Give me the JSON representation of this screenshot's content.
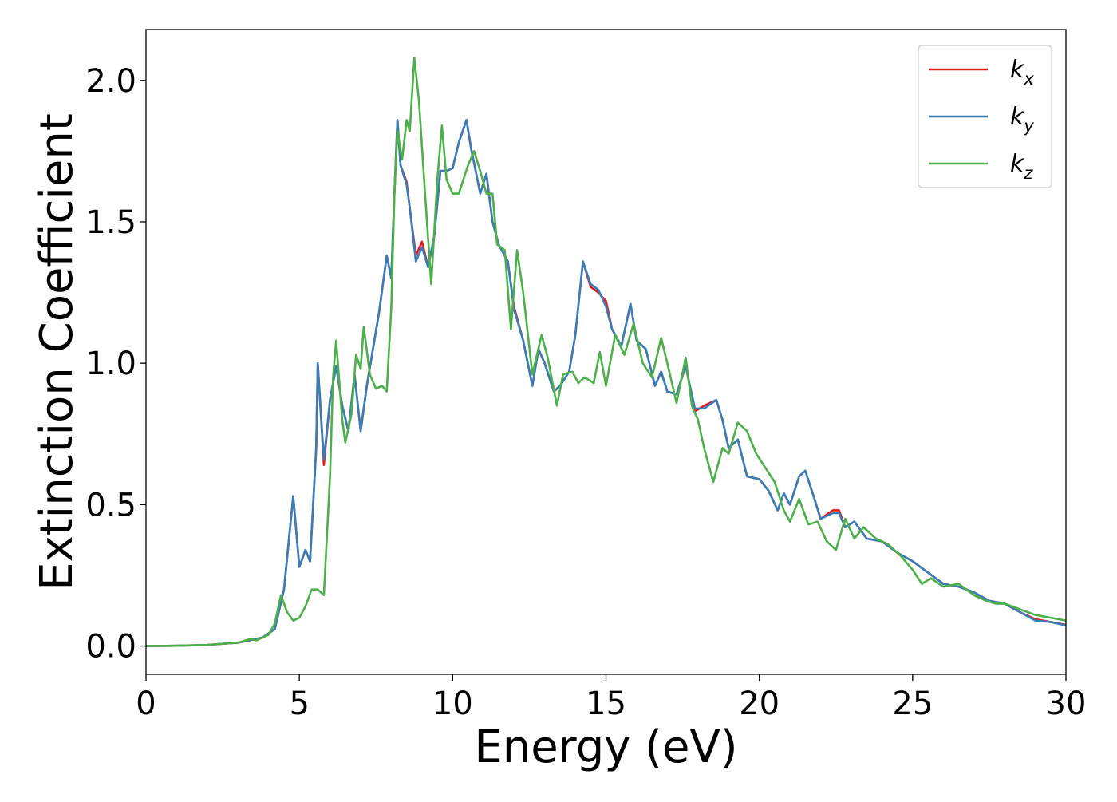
{
  "chart_data": {
    "type": "line",
    "xlabel": "Energy (eV)",
    "ylabel": "Extinction Coefficient",
    "xlim": [
      0,
      30
    ],
    "ylim": [
      -0.1,
      2.18
    ],
    "x_ticks": [
      "0",
      "5",
      "10",
      "15",
      "20",
      "25",
      "30"
    ],
    "y_ticks": [
      "0.0",
      "0.5",
      "1.0",
      "1.5",
      "2.0"
    ],
    "grid": false,
    "legend_position": "top-right",
    "series": [
      {
        "name": "k",
        "subscript": "x",
        "color": "#e41a1c",
        "points": [
          [
            0,
            0.0
          ],
          [
            1,
            0.001
          ],
          [
            2,
            0.004
          ],
          [
            3,
            0.012
          ],
          [
            3.8,
            0.03
          ],
          [
            4.2,
            0.06
          ],
          [
            4.5,
            0.2
          ],
          [
            4.8,
            0.53
          ],
          [
            5.0,
            0.28
          ],
          [
            5.2,
            0.34
          ],
          [
            5.35,
            0.3
          ],
          [
            5.55,
            0.7
          ],
          [
            5.6,
            1.0
          ],
          [
            5.8,
            0.64
          ],
          [
            6.0,
            0.87
          ],
          [
            6.2,
            0.99
          ],
          [
            6.4,
            0.85
          ],
          [
            6.6,
            0.76
          ],
          [
            6.8,
            0.96
          ],
          [
            7.0,
            0.76
          ],
          [
            7.2,
            0.92
          ],
          [
            7.4,
            1.05
          ],
          [
            7.6,
            1.18
          ],
          [
            7.85,
            1.38
          ],
          [
            8.0,
            1.3
          ],
          [
            8.1,
            1.6
          ],
          [
            8.2,
            1.86
          ],
          [
            8.3,
            1.7
          ],
          [
            8.5,
            1.64
          ],
          [
            8.6,
            1.55
          ],
          [
            8.8,
            1.38
          ],
          [
            9.0,
            1.43
          ],
          [
            9.2,
            1.34
          ],
          [
            9.4,
            1.45
          ],
          [
            9.6,
            1.68
          ],
          [
            9.8,
            1.68
          ],
          [
            10.0,
            1.69
          ],
          [
            10.2,
            1.78
          ],
          [
            10.45,
            1.86
          ],
          [
            10.6,
            1.76
          ],
          [
            10.9,
            1.6
          ],
          [
            11.1,
            1.67
          ],
          [
            11.3,
            1.5
          ],
          [
            11.5,
            1.42
          ],
          [
            11.8,
            1.36
          ],
          [
            12.0,
            1.2
          ],
          [
            12.3,
            1.08
          ],
          [
            12.6,
            0.92
          ],
          [
            12.8,
            1.05
          ],
          [
            13.0,
            1.0
          ],
          [
            13.3,
            0.9
          ],
          [
            13.5,
            0.92
          ],
          [
            13.8,
            0.97
          ],
          [
            14.0,
            1.1
          ],
          [
            14.25,
            1.36
          ],
          [
            14.5,
            1.27
          ],
          [
            14.75,
            1.25
          ],
          [
            15.0,
            1.22
          ],
          [
            15.2,
            1.12
          ],
          [
            15.5,
            1.06
          ],
          [
            15.8,
            1.21
          ],
          [
            16.0,
            1.08
          ],
          [
            16.3,
            1.05
          ],
          [
            16.6,
            0.92
          ],
          [
            16.8,
            0.97
          ],
          [
            17.0,
            0.9
          ],
          [
            17.3,
            0.89
          ],
          [
            17.6,
            0.99
          ],
          [
            17.9,
            0.83
          ],
          [
            18.2,
            0.85
          ],
          [
            18.6,
            0.87
          ],
          [
            18.8,
            0.8
          ],
          [
            19.0,
            0.7
          ],
          [
            19.3,
            0.73
          ],
          [
            19.6,
            0.6
          ],
          [
            20.0,
            0.59
          ],
          [
            20.3,
            0.55
          ],
          [
            20.6,
            0.48
          ],
          [
            20.8,
            0.54
          ],
          [
            21.0,
            0.5
          ],
          [
            21.3,
            0.6
          ],
          [
            21.5,
            0.62
          ],
          [
            21.8,
            0.52
          ],
          [
            22.0,
            0.45
          ],
          [
            22.4,
            0.48
          ],
          [
            22.6,
            0.48
          ],
          [
            22.8,
            0.42
          ],
          [
            23.1,
            0.44
          ],
          [
            23.5,
            0.38
          ],
          [
            24.0,
            0.37
          ],
          [
            24.5,
            0.33
          ],
          [
            25.0,
            0.3
          ],
          [
            25.5,
            0.26
          ],
          [
            26.0,
            0.22
          ],
          [
            26.5,
            0.21
          ],
          [
            27.0,
            0.19
          ],
          [
            27.5,
            0.16
          ],
          [
            28.0,
            0.15
          ],
          [
            28.5,
            0.12
          ],
          [
            29.0,
            0.095
          ],
          [
            29.5,
            0.085
          ],
          [
            30.0,
            0.075
          ]
        ]
      },
      {
        "name": "k",
        "subscript": "y",
        "color": "#377eb8",
        "points": [
          [
            0,
            0.0
          ],
          [
            1,
            0.001
          ],
          [
            2,
            0.004
          ],
          [
            3,
            0.012
          ],
          [
            3.8,
            0.03
          ],
          [
            4.2,
            0.06
          ],
          [
            4.5,
            0.2
          ],
          [
            4.8,
            0.53
          ],
          [
            5.0,
            0.28
          ],
          [
            5.2,
            0.34
          ],
          [
            5.35,
            0.3
          ],
          [
            5.55,
            0.7
          ],
          [
            5.6,
            1.0
          ],
          [
            5.8,
            0.66
          ],
          [
            6.0,
            0.87
          ],
          [
            6.2,
            0.99
          ],
          [
            6.4,
            0.85
          ],
          [
            6.6,
            0.76
          ],
          [
            6.8,
            0.96
          ],
          [
            7.0,
            0.76
          ],
          [
            7.2,
            0.92
          ],
          [
            7.4,
            1.05
          ],
          [
            7.6,
            1.18
          ],
          [
            7.85,
            1.38
          ],
          [
            8.0,
            1.3
          ],
          [
            8.1,
            1.6
          ],
          [
            8.2,
            1.86
          ],
          [
            8.3,
            1.7
          ],
          [
            8.5,
            1.63
          ],
          [
            8.6,
            1.55
          ],
          [
            8.8,
            1.36
          ],
          [
            9.0,
            1.41
          ],
          [
            9.2,
            1.34
          ],
          [
            9.4,
            1.45
          ],
          [
            9.6,
            1.68
          ],
          [
            9.8,
            1.68
          ],
          [
            10.0,
            1.69
          ],
          [
            10.2,
            1.78
          ],
          [
            10.45,
            1.86
          ],
          [
            10.6,
            1.76
          ],
          [
            10.9,
            1.6
          ],
          [
            11.1,
            1.67
          ],
          [
            11.3,
            1.5
          ],
          [
            11.5,
            1.42
          ],
          [
            11.8,
            1.36
          ],
          [
            12.0,
            1.19
          ],
          [
            12.3,
            1.08
          ],
          [
            12.6,
            0.92
          ],
          [
            12.8,
            1.05
          ],
          [
            13.0,
            1.0
          ],
          [
            13.3,
            0.9
          ],
          [
            13.5,
            0.92
          ],
          [
            13.8,
            0.97
          ],
          [
            14.0,
            1.1
          ],
          [
            14.25,
            1.36
          ],
          [
            14.5,
            1.28
          ],
          [
            14.75,
            1.26
          ],
          [
            15.0,
            1.2
          ],
          [
            15.2,
            1.12
          ],
          [
            15.5,
            1.06
          ],
          [
            15.8,
            1.21
          ],
          [
            16.0,
            1.08
          ],
          [
            16.3,
            1.05
          ],
          [
            16.6,
            0.92
          ],
          [
            16.8,
            0.97
          ],
          [
            17.0,
            0.9
          ],
          [
            17.3,
            0.89
          ],
          [
            17.6,
            0.99
          ],
          [
            17.9,
            0.84
          ],
          [
            18.2,
            0.84
          ],
          [
            18.6,
            0.87
          ],
          [
            18.8,
            0.8
          ],
          [
            19.0,
            0.7
          ],
          [
            19.3,
            0.73
          ],
          [
            19.6,
            0.6
          ],
          [
            20.0,
            0.59
          ],
          [
            20.3,
            0.55
          ],
          [
            20.6,
            0.48
          ],
          [
            20.8,
            0.54
          ],
          [
            21.0,
            0.5
          ],
          [
            21.3,
            0.6
          ],
          [
            21.5,
            0.62
          ],
          [
            21.8,
            0.52
          ],
          [
            22.0,
            0.45
          ],
          [
            22.4,
            0.47
          ],
          [
            22.6,
            0.47
          ],
          [
            22.8,
            0.42
          ],
          [
            23.1,
            0.44
          ],
          [
            23.5,
            0.38
          ],
          [
            24.0,
            0.37
          ],
          [
            24.5,
            0.33
          ],
          [
            25.0,
            0.3
          ],
          [
            25.5,
            0.26
          ],
          [
            26.0,
            0.22
          ],
          [
            26.5,
            0.21
          ],
          [
            27.0,
            0.19
          ],
          [
            27.5,
            0.16
          ],
          [
            28.0,
            0.15
          ],
          [
            28.5,
            0.12
          ],
          [
            29.0,
            0.09
          ],
          [
            29.5,
            0.085
          ],
          [
            30.0,
            0.073
          ]
        ]
      },
      {
        "name": "k",
        "subscript": "z",
        "color": "#4daf4a",
        "points": [
          [
            0,
            0.0
          ],
          [
            1,
            0.001
          ],
          [
            2,
            0.004
          ],
          [
            3,
            0.012
          ],
          [
            3.4,
            0.025
          ],
          [
            3.6,
            0.02
          ],
          [
            4.0,
            0.04
          ],
          [
            4.2,
            0.08
          ],
          [
            4.4,
            0.18
          ],
          [
            4.6,
            0.12
          ],
          [
            4.8,
            0.09
          ],
          [
            5.0,
            0.1
          ],
          [
            5.2,
            0.14
          ],
          [
            5.4,
            0.2
          ],
          [
            5.6,
            0.2
          ],
          [
            5.8,
            0.18
          ],
          [
            6.0,
            0.6
          ],
          [
            6.1,
            0.95
          ],
          [
            6.2,
            1.08
          ],
          [
            6.4,
            0.8
          ],
          [
            6.5,
            0.72
          ],
          [
            6.7,
            0.82
          ],
          [
            6.85,
            1.03
          ],
          [
            7.0,
            0.98
          ],
          [
            7.1,
            1.13
          ],
          [
            7.3,
            0.96
          ],
          [
            7.5,
            0.91
          ],
          [
            7.7,
            0.92
          ],
          [
            7.85,
            0.9
          ],
          [
            8.0,
            1.2
          ],
          [
            8.1,
            1.6
          ],
          [
            8.2,
            1.82
          ],
          [
            8.35,
            1.72
          ],
          [
            8.5,
            1.86
          ],
          [
            8.6,
            1.82
          ],
          [
            8.75,
            2.08
          ],
          [
            8.9,
            1.93
          ],
          [
            9.1,
            1.6
          ],
          [
            9.3,
            1.28
          ],
          [
            9.5,
            1.65
          ],
          [
            9.65,
            1.84
          ],
          [
            9.8,
            1.65
          ],
          [
            10.0,
            1.6
          ],
          [
            10.2,
            1.6
          ],
          [
            10.5,
            1.7
          ],
          [
            10.7,
            1.75
          ],
          [
            10.9,
            1.68
          ],
          [
            11.1,
            1.6
          ],
          [
            11.3,
            1.6
          ],
          [
            11.45,
            1.42
          ],
          [
            11.7,
            1.4
          ],
          [
            11.9,
            1.12
          ],
          [
            12.1,
            1.4
          ],
          [
            12.3,
            1.25
          ],
          [
            12.6,
            0.96
          ],
          [
            12.9,
            1.1
          ],
          [
            13.1,
            1.02
          ],
          [
            13.4,
            0.85
          ],
          [
            13.6,
            0.96
          ],
          [
            13.9,
            0.97
          ],
          [
            14.1,
            0.93
          ],
          [
            14.3,
            0.95
          ],
          [
            14.6,
            0.93
          ],
          [
            14.8,
            1.04
          ],
          [
            15.0,
            0.92
          ],
          [
            15.3,
            1.1
          ],
          [
            15.6,
            1.03
          ],
          [
            15.9,
            1.14
          ],
          [
            16.2,
            1.0
          ],
          [
            16.5,
            0.95
          ],
          [
            16.8,
            1.09
          ],
          [
            17.0,
            1.0
          ],
          [
            17.3,
            0.86
          ],
          [
            17.6,
            1.02
          ],
          [
            17.8,
            0.85
          ],
          [
            18.0,
            0.8
          ],
          [
            18.2,
            0.7
          ],
          [
            18.5,
            0.58
          ],
          [
            18.8,
            0.7
          ],
          [
            19.0,
            0.68
          ],
          [
            19.3,
            0.79
          ],
          [
            19.6,
            0.76
          ],
          [
            19.9,
            0.68
          ],
          [
            20.2,
            0.63
          ],
          [
            20.5,
            0.58
          ],
          [
            20.8,
            0.48
          ],
          [
            21.0,
            0.44
          ],
          [
            21.3,
            0.52
          ],
          [
            21.6,
            0.43
          ],
          [
            21.9,
            0.44
          ],
          [
            22.2,
            0.37
          ],
          [
            22.5,
            0.34
          ],
          [
            22.8,
            0.45
          ],
          [
            23.1,
            0.38
          ],
          [
            23.4,
            0.42
          ],
          [
            23.8,
            0.38
          ],
          [
            24.2,
            0.36
          ],
          [
            24.6,
            0.32
          ],
          [
            25.0,
            0.27
          ],
          [
            25.3,
            0.22
          ],
          [
            25.6,
            0.24
          ],
          [
            26.0,
            0.21
          ],
          [
            26.5,
            0.22
          ],
          [
            27.0,
            0.18
          ],
          [
            27.4,
            0.16
          ],
          [
            27.7,
            0.15
          ],
          [
            28.0,
            0.15
          ],
          [
            28.5,
            0.13
          ],
          [
            29.0,
            0.11
          ],
          [
            29.5,
            0.1
          ],
          [
            30.0,
            0.09
          ]
        ]
      }
    ]
  }
}
